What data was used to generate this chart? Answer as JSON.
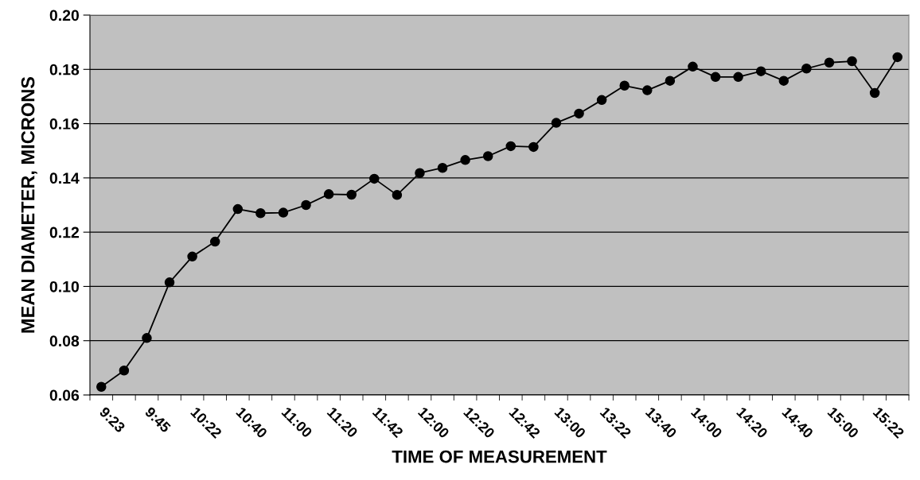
{
  "chart_data": {
    "type": "line",
    "xlabel": "TIME OF MEASUREMENT",
    "ylabel": "MEAN DIAMETER, MICRONS",
    "categories": [
      "9:23",
      null,
      "9:45",
      null,
      "10:22",
      null,
      "10:40",
      null,
      "11:00",
      null,
      "11:20",
      null,
      "11:42",
      null,
      "12:00",
      null,
      "12:20",
      null,
      "12:42",
      null,
      "13:00",
      null,
      "13:22",
      null,
      "13:40",
      null,
      "14:00",
      null,
      "14:20",
      null,
      "14:40",
      null,
      "15:00",
      null,
      "15:22",
      null
    ],
    "series": [
      {
        "color": "#000000",
        "values": [
          0.063,
          0.069,
          0.081,
          0.1015,
          0.111,
          0.1165,
          0.1285,
          0.127,
          0.1272,
          0.13,
          0.134,
          0.1338,
          0.1397,
          0.1337,
          0.1418,
          0.1437,
          0.1466,
          0.148,
          0.1517,
          0.1514,
          0.1603,
          0.1637,
          0.1687,
          0.174,
          0.1723,
          0.1758,
          0.181,
          0.1772,
          0.1772,
          0.1793,
          0.1758,
          0.1803,
          0.1825,
          0.183,
          0.1713,
          0.1845
        ]
      }
    ],
    "ylim": [
      0.06,
      0.2
    ],
    "yticks": [
      0.06,
      0.08,
      {
        "value": 0.1,
        "label": "0.10"
      },
      0.12,
      0.14,
      0.16,
      0.18,
      {
        "value": 0.2,
        "label": "0.20"
      }
    ],
    "grid": "y",
    "marker": "circle",
    "line_style": "solid",
    "legend": false
  }
}
